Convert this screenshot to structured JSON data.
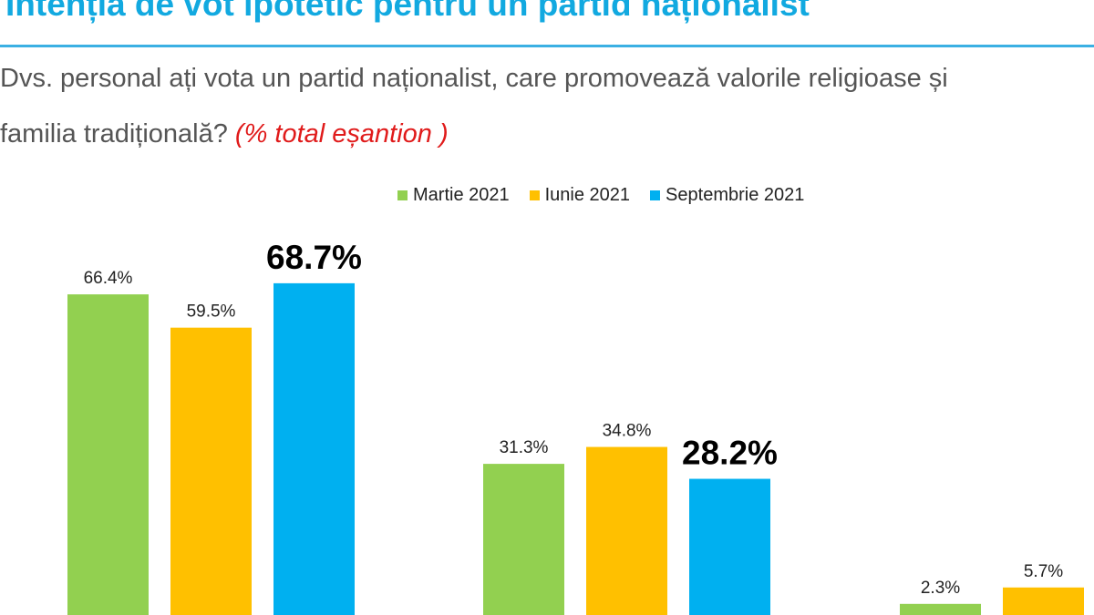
{
  "header": {
    "title": "Intenția de vot ipotetic pentru un partid naționalist",
    "question_line1": "Dvs. personal ați vota un partid naționalist, care promovează valorile religioase și",
    "question_line2": "familia tradițională?",
    "question_note": "(% total eșantion )"
  },
  "colors": {
    "title": "#12a9e0",
    "note": "#e01b1b"
  },
  "chart_data": {
    "type": "bar",
    "categories": [
      "",
      "",
      ""
    ],
    "series": [
      {
        "name": "Martie 2021",
        "color": "#92d050",
        "values": [
          66.4,
          31.3,
          2.3
        ],
        "labels": [
          "66.4%",
          "31.3%",
          "2.3%"
        ]
      },
      {
        "name": "Iunie 2021",
        "color": "#ffc000",
        "values": [
          59.5,
          34.8,
          5.7
        ],
        "labels": [
          "59.5%",
          "34.8%",
          "5.7%"
        ]
      },
      {
        "name": "Septembrie 2021",
        "color": "#00b0f0",
        "values": [
          68.7,
          28.2,
          null
        ],
        "labels": [
          "68.7%",
          "28.2%",
          ""
        ]
      }
    ],
    "highlight_series": "Septembrie 2021",
    "legend_position": "top",
    "grid": false
  }
}
